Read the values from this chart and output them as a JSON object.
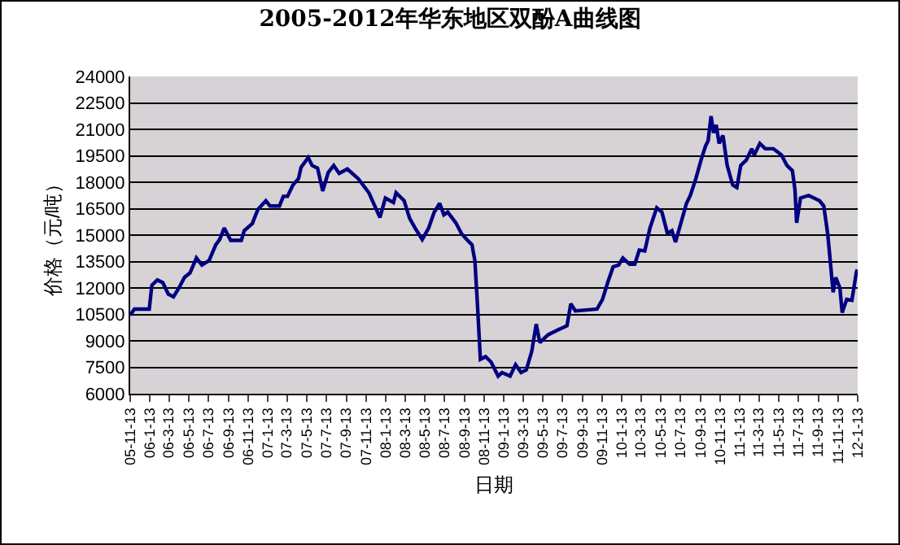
{
  "chart_data": {
    "type": "line",
    "title": "2005-2012年华东地区双酚A曲线图",
    "xlabel": "日期",
    "ylabel": "价格（元/吨）",
    "x": [
      "2005-11-13",
      "2005-11-26",
      "2006-01-11",
      "2006-01-19",
      "2006-02-05",
      "2006-02-22",
      "2006-03-11",
      "2006-03-27",
      "2006-04-13",
      "2006-04-30",
      "2006-05-17",
      "2006-06-06",
      "2006-06-23",
      "2006-07-15",
      "2006-08-05",
      "2006-08-17",
      "2006-08-31",
      "2006-09-20",
      "2006-10-23",
      "2006-11-01",
      "2006-11-26",
      "2006-12-13",
      "2007-01-07",
      "2007-01-20",
      "2007-02-18",
      "2007-03-02",
      "2007-03-15",
      "2007-04-01",
      "2007-04-18",
      "2007-04-26",
      "2007-05-18",
      "2007-05-30",
      "2007-06-16",
      "2007-07-02",
      "2007-07-19",
      "2007-08-05",
      "2007-08-22",
      "2007-09-16",
      "2007-10-20",
      "2007-11-22",
      "2007-12-26",
      "2008-01-12",
      "2008-02-06",
      "2008-02-14",
      "2008-03-10",
      "2008-03-27",
      "2008-04-13",
      "2008-05-05",
      "2008-05-25",
      "2008-06-11",
      "2008-06-28",
      "2008-07-11",
      "2008-07-23",
      "2008-08-17",
      "2008-09-03",
      "2008-09-20",
      "2008-10-06",
      "2008-10-15",
      "2008-10-23",
      "2008-11-01",
      "2008-11-17",
      "2008-12-04",
      "2008-12-26",
      "2009-01-07",
      "2009-02-01",
      "2009-02-18",
      "2009-03-07",
      "2009-03-23",
      "2009-04-09",
      "2009-04-23",
      "2009-05-04",
      "2009-05-30",
      "2009-07-02",
      "2009-07-27",
      "2009-08-08",
      "2009-08-22",
      "2009-09-24",
      "2009-10-28",
      "2009-11-14",
      "2009-11-30",
      "2009-12-17",
      "2010-01-03",
      "2010-01-16",
      "2010-02-06",
      "2010-02-22",
      "2010-03-08",
      "2010-03-25",
      "2010-04-10",
      "2010-05-01",
      "2010-05-17",
      "2010-06-03",
      "2010-06-17",
      "2010-06-28",
      "2010-07-15",
      "2010-08-01",
      "2010-08-13",
      "2010-08-30",
      "2010-09-15",
      "2010-09-29",
      "2010-10-07",
      "2010-10-16",
      "2010-10-24",
      "2010-11-01",
      "2010-11-10",
      "2010-11-22",
      "2010-12-05",
      "2010-12-22",
      "2011-01-04",
      "2011-01-16",
      "2011-02-02",
      "2011-02-19",
      "2011-02-27",
      "2011-03-16",
      "2011-04-02",
      "2011-04-27",
      "2011-05-22",
      "2011-06-08",
      "2011-06-25",
      "2011-07-03",
      "2011-07-08",
      "2011-07-20",
      "2011-08-14",
      "2011-09-17",
      "2011-09-30",
      "2011-10-12",
      "2011-10-20",
      "2011-10-29",
      "2011-11-06",
      "2011-11-19",
      "2011-11-26",
      "2011-12-10",
      "2011-12-26",
      "2012-01-09",
      "2012-01-12"
    ],
    "series": [
      {
        "color": "#000080",
        "values": [
          10450,
          10800,
          10800,
          12150,
          12450,
          12300,
          11650,
          11500,
          12000,
          12600,
          12850,
          13700,
          13300,
          13550,
          14450,
          14750,
          15400,
          14700,
          14700,
          15250,
          15650,
          16450,
          16950,
          16650,
          16650,
          17200,
          17200,
          17850,
          18200,
          18850,
          19400,
          18950,
          18800,
          17500,
          18550,
          18950,
          18500,
          18750,
          18200,
          17400,
          16000,
          17100,
          16850,
          17400,
          16950,
          15950,
          15400,
          14750,
          15400,
          16300,
          16800,
          16150,
          16300,
          15700,
          15100,
          14750,
          14450,
          13550,
          11050,
          7950,
          8100,
          7800,
          7000,
          7200,
          7000,
          7650,
          7200,
          7350,
          8400,
          9950,
          8900,
          9350,
          9650,
          9850,
          11100,
          10700,
          10750,
          10800,
          11350,
          12300,
          13200,
          13300,
          13700,
          13350,
          13350,
          14150,
          14100,
          15400,
          16550,
          16300,
          15100,
          15250,
          14600,
          15700,
          16800,
          17250,
          18200,
          19250,
          20050,
          20350,
          21750,
          20800,
          21250,
          20200,
          20650,
          18950,
          17850,
          17700,
          18950,
          19250,
          19900,
          19550,
          20200,
          19900,
          19900,
          19550,
          18950,
          18650,
          17550,
          15700,
          17100,
          17250,
          16950,
          16650,
          15100,
          13550,
          11750,
          12600,
          12000,
          10600,
          11350,
          11300,
          12900,
          13050
        ]
      }
    ],
    "xlim": [
      "2005-11-13",
      "2012-01-13"
    ],
    "xticks": [
      {
        "value": "2005-11-13",
        "label": "05-11-13"
      },
      {
        "value": "2006-01-13",
        "label": "06-1-13"
      },
      {
        "value": "2006-03-13",
        "label": "06-3-13"
      },
      {
        "value": "2006-05-13",
        "label": "06-5-13"
      },
      {
        "value": "2006-07-13",
        "label": "06-7-13"
      },
      {
        "value": "2006-09-13",
        "label": "06-9-13"
      },
      {
        "value": "2006-11-13",
        "label": "06-11-13"
      },
      {
        "value": "2007-01-13",
        "label": "07-1-13"
      },
      {
        "value": "2007-03-13",
        "label": "07-3-13"
      },
      {
        "value": "2007-05-13",
        "label": "07-5-13"
      },
      {
        "value": "2007-07-13",
        "label": "07-7-13"
      },
      {
        "value": "2007-09-13",
        "label": "07-9-13"
      },
      {
        "value": "2007-11-13",
        "label": "07-11-13"
      },
      {
        "value": "2008-01-13",
        "label": "08-1-13"
      },
      {
        "value": "2008-03-13",
        "label": "08-3-13"
      },
      {
        "value": "2008-05-13",
        "label": "08-5-13"
      },
      {
        "value": "2008-07-13",
        "label": "08-7-13"
      },
      {
        "value": "2008-09-13",
        "label": "08-9-13"
      },
      {
        "value": "2008-11-13",
        "label": "08-11-13"
      },
      {
        "value": "2009-01-13",
        "label": "09-1-13"
      },
      {
        "value": "2009-03-13",
        "label": "09-3-13"
      },
      {
        "value": "2009-05-13",
        "label": "09-5-13"
      },
      {
        "value": "2009-07-13",
        "label": "09-7-13"
      },
      {
        "value": "2009-09-13",
        "label": "09-9-13"
      },
      {
        "value": "2009-11-13",
        "label": "09-11-13"
      },
      {
        "value": "2010-01-13",
        "label": "10-1-13"
      },
      {
        "value": "2010-03-13",
        "label": "10-3-13"
      },
      {
        "value": "2010-05-13",
        "label": "10-5-13"
      },
      {
        "value": "2010-07-13",
        "label": "10-7-13"
      },
      {
        "value": "2010-09-13",
        "label": "10-9-13"
      },
      {
        "value": "2010-11-13",
        "label": "10-11-13"
      },
      {
        "value": "2011-01-13",
        "label": "11-1-13"
      },
      {
        "value": "2011-03-13",
        "label": "11-3-13"
      },
      {
        "value": "2011-05-13",
        "label": "11-5-13"
      },
      {
        "value": "2011-07-13",
        "label": "11-7-13"
      },
      {
        "value": "2011-09-13",
        "label": "11-9-13"
      },
      {
        "value": "2011-11-13",
        "label": "11-11-13"
      },
      {
        "value": "2012-01-13",
        "label": "12-1-13"
      }
    ],
    "ylim": [
      6000,
      24000
    ],
    "yticks": [
      6000,
      7500,
      9000,
      10500,
      12000,
      13500,
      15000,
      16500,
      18000,
      19500,
      21000,
      22500,
      24000
    ],
    "grid": "y",
    "marker": "none",
    "line_style": "solid"
  }
}
